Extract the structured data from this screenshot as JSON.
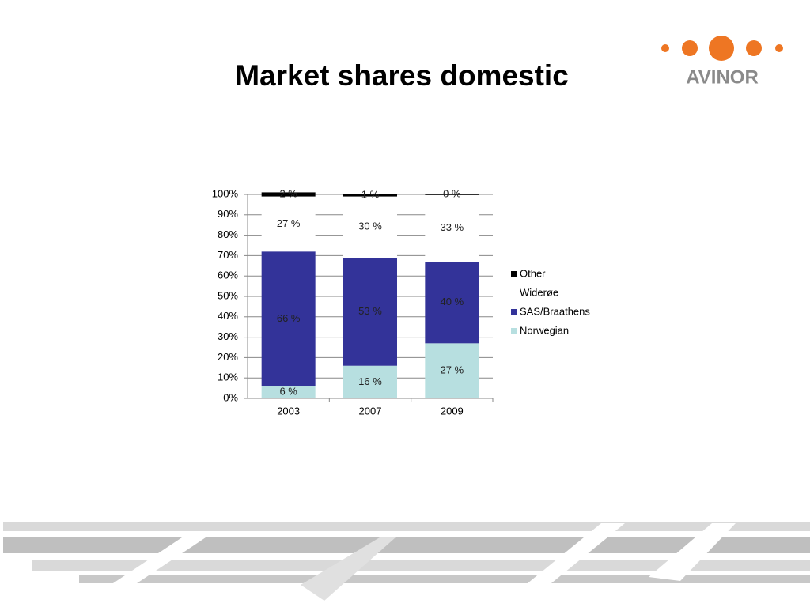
{
  "logo_text": "AVINOR",
  "chart_data": {
    "type": "stacked_bar",
    "title": "Market shares domestic",
    "categories": [
      "2003",
      "2007",
      "2009"
    ],
    "series": [
      {
        "name": "Norwegian",
        "color": "#b7dfe0",
        "values": [
          6,
          16,
          27
        ],
        "value_labels": [
          "6 %",
          "16 %",
          "27 %"
        ]
      },
      {
        "name": "SAS/Braathens",
        "color": "#333399",
        "values": [
          66,
          53,
          40
        ],
        "value_labels": [
          "66 %",
          "53 %",
          "40 %"
        ]
      },
      {
        "name": "Widerøe",
        "color": "#ffffff",
        "values": [
          27,
          30,
          33
        ],
        "value_labels": [
          "27 %",
          "30 %",
          "33 %"
        ]
      },
      {
        "name": "Other",
        "color": "#000000",
        "values": [
          2,
          1,
          0
        ],
        "value_labels": [
          "2 %",
          "1 %",
          "0 %"
        ]
      }
    ],
    "ylim": [
      0,
      100
    ],
    "yticks": [
      {
        "value": 0,
        "label": "0%"
      },
      {
        "value": 10,
        "label": "10%"
      },
      {
        "value": 20,
        "label": "20%"
      },
      {
        "value": 30,
        "label": "30%"
      },
      {
        "value": 40,
        "label": "40%"
      },
      {
        "value": 50,
        "label": "50%"
      },
      {
        "value": 60,
        "label": "60%"
      },
      {
        "value": 70,
        "label": "70%"
      },
      {
        "value": 80,
        "label": "80%"
      },
      {
        "value": 90,
        "label": "90%"
      },
      {
        "value": 100,
        "label": "100%"
      }
    ],
    "grid": true,
    "legend": "right"
  }
}
